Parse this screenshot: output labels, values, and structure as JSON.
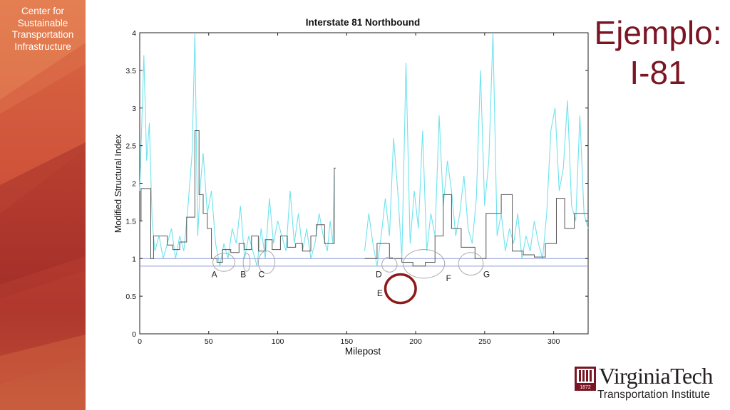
{
  "sidebar": {
    "org_name": "Center for\nSustainable\nTransportation\nInfrastructure"
  },
  "slide": {
    "title": "Ejemplo:\nI-81"
  },
  "logo": {
    "name": "VirginiaTech",
    "subtitle": "Transportation Institute",
    "seal_year": "1872",
    "brand_color": "#7a1523"
  },
  "chart_data": {
    "type": "line",
    "title": "Interstate 81 Northbound",
    "xlabel": "Milepost",
    "ylabel": "Modified Structural Index",
    "xlim": [
      0,
      325
    ],
    "ylim": [
      0,
      4
    ],
    "xticks": [
      0,
      50,
      100,
      150,
      200,
      250,
      300
    ],
    "yticks": [
      0,
      0.5,
      1,
      1.5,
      2,
      2.5,
      3,
      3.5,
      4
    ],
    "ytick_labels": [
      "0",
      "0.5",
      "1",
      "1.5",
      "2",
      "2.5",
      "3",
      "3.5",
      "4"
    ],
    "reference_lines": [
      1.0,
      0.9
    ],
    "colors": {
      "raw": "#5fe0ec",
      "average": "#555555",
      "reference": "#8a9bd6",
      "circles": "#aaaaaa",
      "highlight": "#8b1a1a"
    },
    "series": [
      {
        "style": "raw",
        "segments": [
          {
            "x": [
              0,
              3,
              5,
              7,
              9,
              11,
              14,
              17,
              20,
              23,
              26,
              29,
              32,
              35,
              38,
              40,
              42,
              44,
              46,
              49,
              52,
              55,
              58,
              61,
              64,
              67,
              70,
              73,
              76,
              79,
              82,
              85,
              88,
              91,
              94,
              97,
              100,
              103,
              106,
              109,
              112,
              115,
              118,
              121,
              124,
              127,
              130,
              133,
              136,
              138,
              140,
              141
            ],
            "y": [
              1.9,
              3.7,
              2.3,
              2.8,
              1.5,
              1.1,
              1.3,
              1.0,
              1.2,
              1.4,
              1.0,
              1.3,
              1.1,
              1.7,
              2.4,
              4.0,
              1.3,
              2.0,
              2.4,
              1.6,
              1.9,
              1.2,
              0.9,
              1.2,
              1.0,
              1.4,
              1.2,
              1.7,
              1.0,
              1.3,
              1.1,
              0.9,
              1.4,
              1.0,
              1.8,
              1.2,
              1.5,
              1.3,
              1.1,
              1.9,
              1.2,
              1.6,
              1.1,
              1.4,
              1.0,
              1.2,
              1.6,
              1.3,
              1.1,
              1.5,
              1.2,
              2.1
            ]
          },
          {
            "x": [
              163,
              166,
              169,
              172,
              175,
              178,
              181,
              184,
              187,
              190,
              193,
              196,
              199,
              202,
              205,
              208,
              211,
              214,
              217,
              220,
              223,
              226,
              229,
              232,
              235,
              238,
              241,
              244,
              247,
              250,
              253,
              256,
              259,
              262,
              265,
              268,
              271,
              274,
              277,
              280,
              283,
              286,
              289,
              292,
              295,
              298,
              301,
              304,
              307,
              310,
              313,
              316,
              319,
              322,
              325
            ],
            "y": [
              1.1,
              1.6,
              1.2,
              0.9,
              1.3,
              1.8,
              1.3,
              2.6,
              1.9,
              1.0,
              3.6,
              1.2,
              1.9,
              1.4,
              2.7,
              1.1,
              1.6,
              1.3,
              2.9,
              1.7,
              2.3,
              1.9,
              1.3,
              1.6,
              2.1,
              1.4,
              1.2,
              1.8,
              3.5,
              1.7,
              2.3,
              4.0,
              1.3,
              1.6,
              1.1,
              1.4,
              1.2,
              1.6,
              1.0,
              1.3,
              1.1,
              1.5,
              1.2,
              1.0,
              1.6,
              2.7,
              3.0,
              1.9,
              2.2,
              3.1,
              1.7,
              1.5,
              2.9,
              1.6,
              1.4
            ]
          }
        ]
      },
      {
        "style": "average",
        "segments": [
          {
            "x": [
              0,
              1,
              1,
              8,
              8,
              10,
              10,
              20,
              20,
              24,
              24,
              29,
              29,
              34,
              34,
              40,
              40,
              43,
              43,
              46,
              46,
              49,
              49,
              52,
              52,
              56,
              56,
              60,
              60,
              66,
              66,
              72,
              72,
              76,
              76,
              81,
              81,
              86,
              86,
              91,
              91,
              96,
              96,
              102,
              102,
              107,
              107,
              113,
              113,
              118,
              118,
              124,
              124,
              128,
              128,
              134,
              134,
              141,
              141,
              142
            ],
            "y": [
              1.5,
              1.5,
              1.93,
              1.93,
              1.0,
              1.0,
              1.3,
              1.3,
              1.18,
              1.18,
              1.12,
              1.12,
              1.22,
              1.22,
              1.55,
              1.55,
              2.7,
              2.7,
              1.85,
              1.85,
              1.6,
              1.6,
              1.4,
              1.4,
              1.0,
              1.0,
              0.95,
              0.95,
              1.12,
              1.12,
              1.08,
              1.08,
              1.2,
              1.2,
              1.12,
              1.12,
              1.3,
              1.3,
              1.1,
              1.1,
              1.25,
              1.25,
              1.12,
              1.12,
              1.3,
              1.3,
              1.15,
              1.15,
              1.2,
              1.2,
              1.1,
              1.1,
              1.3,
              1.3,
              1.45,
              1.45,
              1.2,
              1.2,
              2.2,
              2.2
            ]
          },
          {
            "x": [
              163,
              172,
              172,
              181,
              181,
              190,
              190,
              198,
              198,
              207,
              207,
              214,
              214,
              220,
              220,
              226,
              226,
              233,
              233,
              243,
              243,
              251,
              251,
              262,
              262,
              270,
              270,
              278,
              278,
              286,
              286,
              294,
              294,
              302,
              302,
              308,
              308,
              315,
              315,
              325
            ],
            "y": [
              1.0,
              1.0,
              1.2,
              1.2,
              1.0,
              1.0,
              0.95,
              0.95,
              0.9,
              0.9,
              0.95,
              0.95,
              1.3,
              1.3,
              1.85,
              1.85,
              1.4,
              1.4,
              1.15,
              1.15,
              1.0,
              1.0,
              1.6,
              1.6,
              1.85,
              1.85,
              1.1,
              1.1,
              1.05,
              1.05,
              1.02,
              1.02,
              1.2,
              1.2,
              1.8,
              1.8,
              1.4,
              1.4,
              1.6,
              1.6
            ]
          }
        ]
      }
    ],
    "annotations": [
      {
        "label": "A",
        "x": 52,
        "y": 0.75,
        "cx": 61,
        "cy": 0.95,
        "rx": 8,
        "ry": 0.12
      },
      {
        "label": "B",
        "x": 73,
        "y": 0.75,
        "cx": 77.5,
        "cy": 0.95,
        "rx": 2.5,
        "ry": 0.12
      },
      {
        "label": "C",
        "x": 86,
        "y": 0.75,
        "cx": 92,
        "cy": 0.95,
        "rx": 6,
        "ry": 0.15
      },
      {
        "label": "D",
        "x": 171,
        "y": 0.75,
        "cx": 181,
        "cy": 0.92,
        "rx": 5.5,
        "ry": 0.1
      },
      {
        "label": "E",
        "x": 172,
        "y": 0.5,
        "cx": 189,
        "cy": 0.6,
        "rx": 11,
        "ry": 0.19,
        "highlight": true
      },
      {
        "label": "F",
        "x": 222,
        "y": 0.7,
        "cx": 206,
        "cy": 0.93,
        "rx": 15,
        "ry": 0.19
      },
      {
        "label": "G",
        "x": 249,
        "y": 0.75,
        "cx": 240,
        "cy": 0.93,
        "rx": 9,
        "ry": 0.15
      }
    ]
  }
}
